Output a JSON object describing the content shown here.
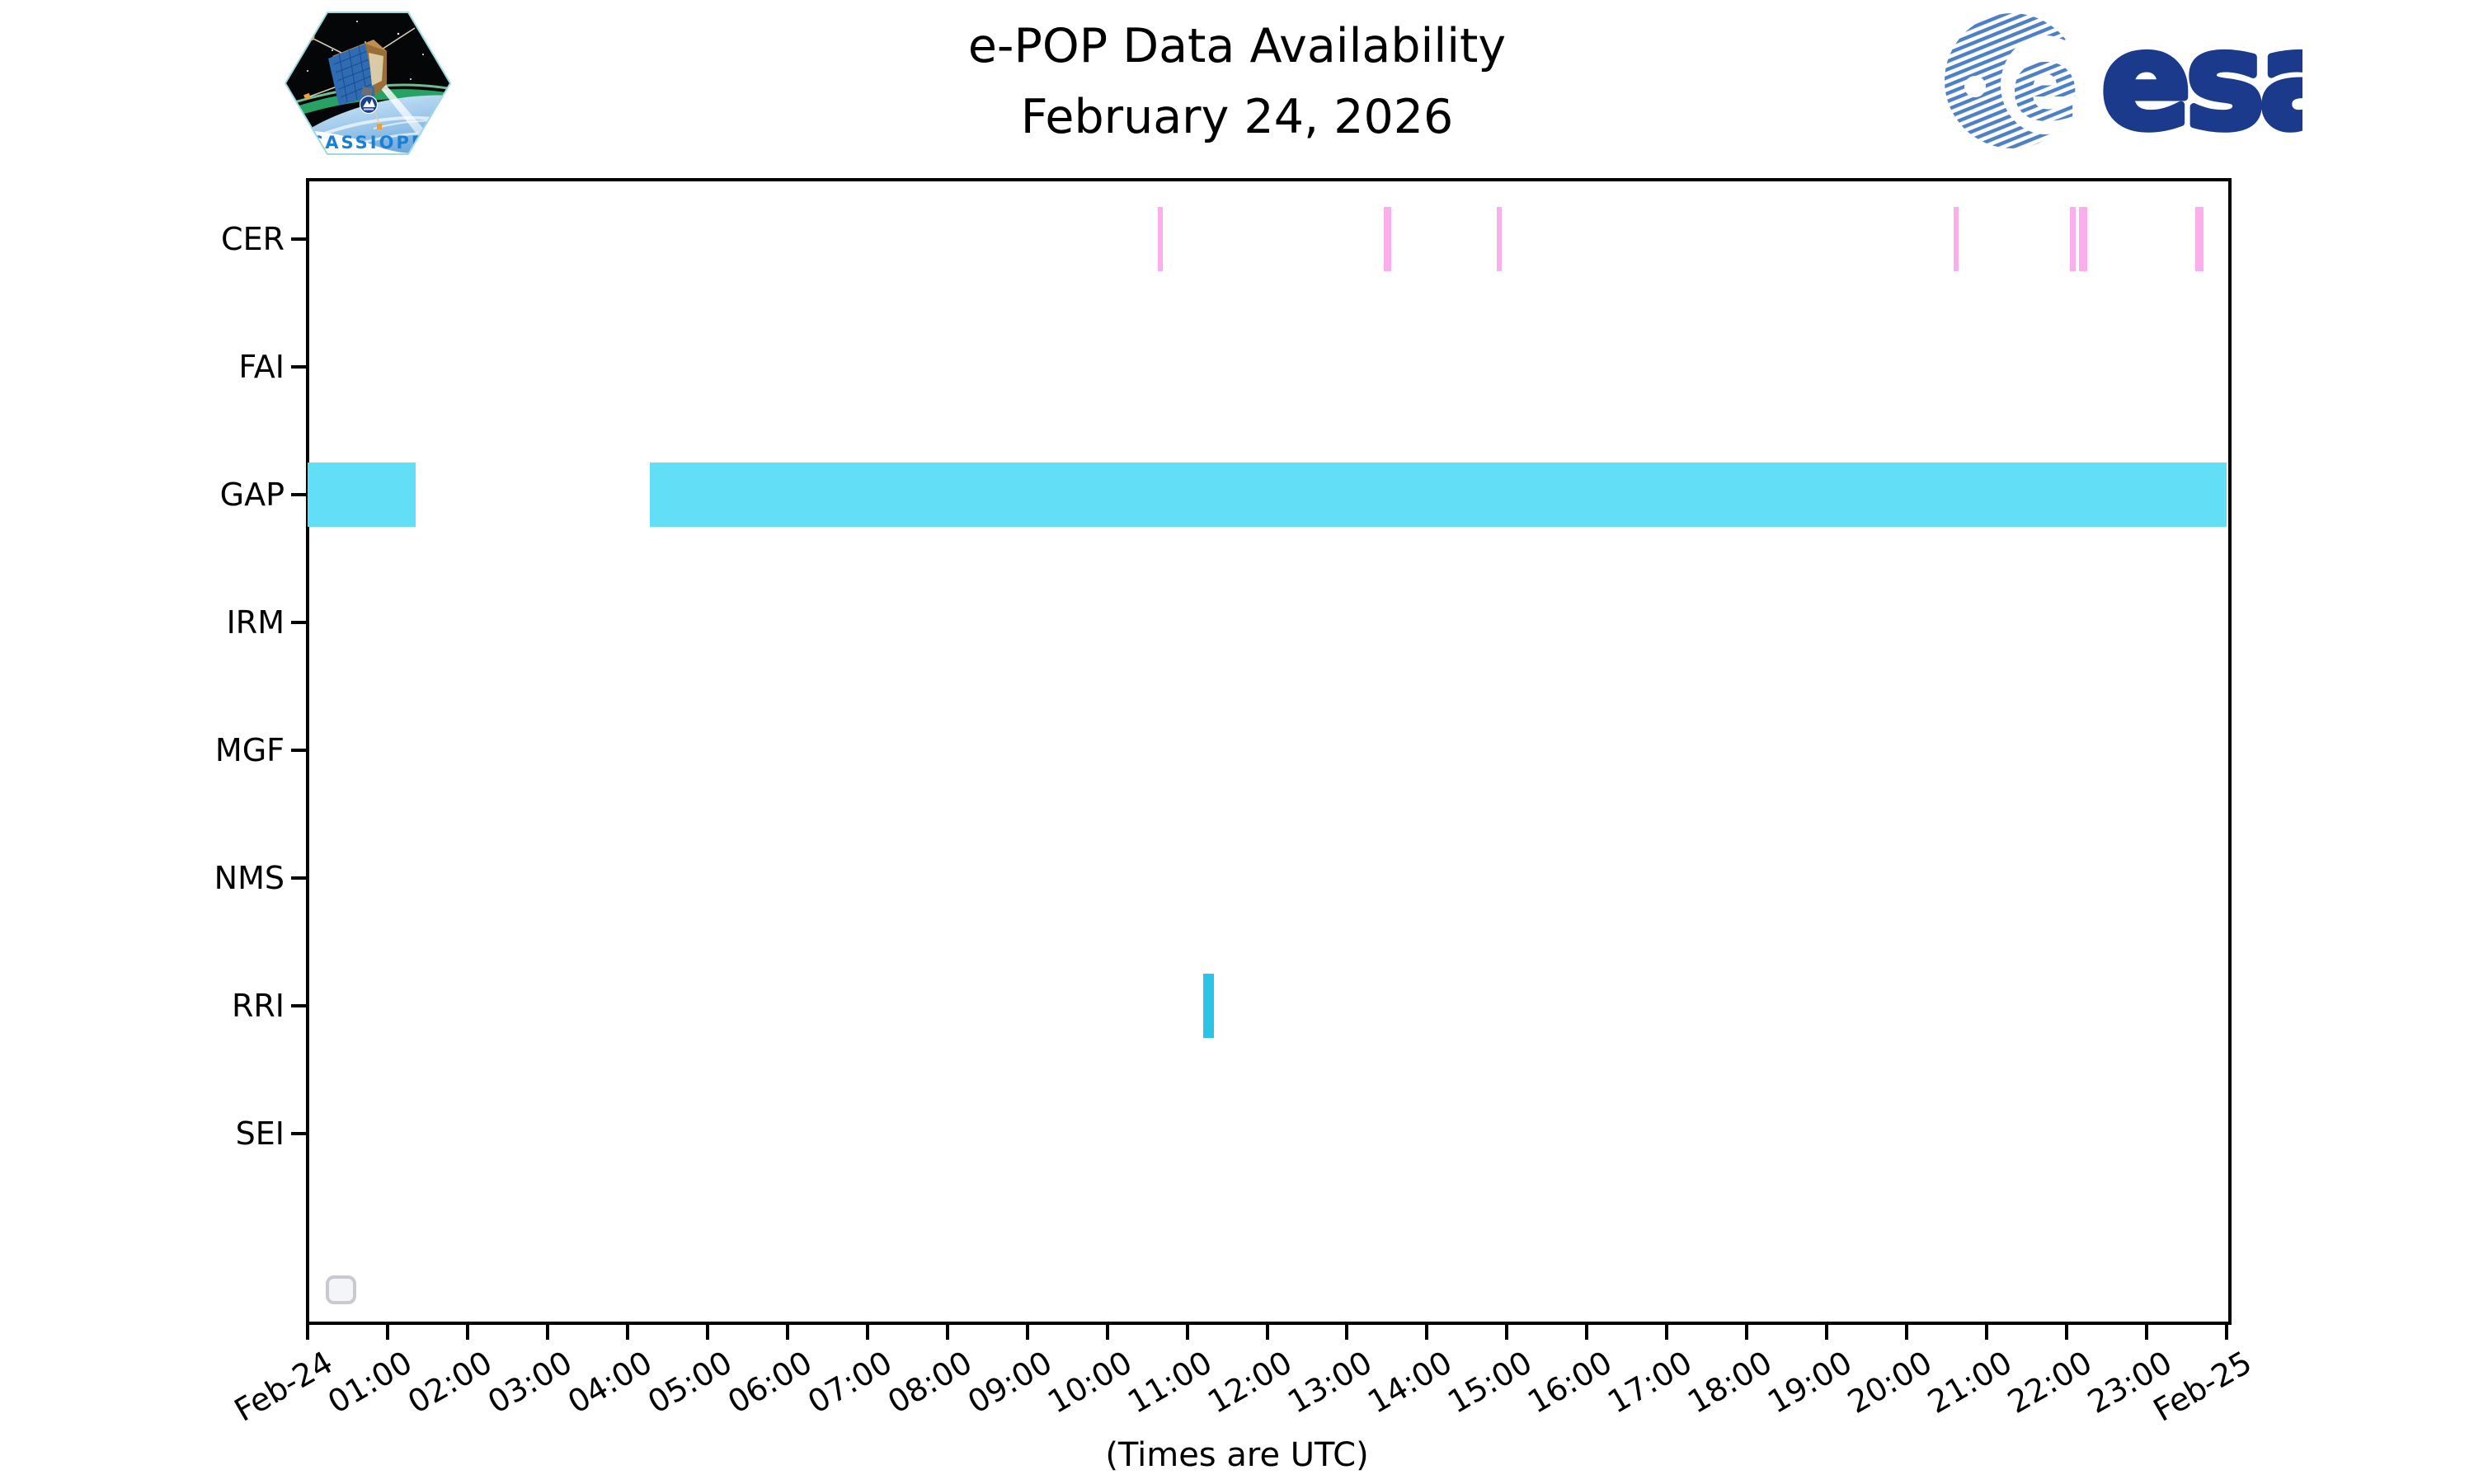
{
  "title": {
    "line1": "e-POP Data Availability",
    "line2": "February 24, 2026"
  },
  "footer": {
    "note": "(Times are UTC)"
  },
  "logos": {
    "esa_text": "esa",
    "patch_text": "CASSIOPE"
  },
  "chart_data": {
    "type": "gantt",
    "title": "e-POP Data Availability — February 24, 2026",
    "xlabel": "(Times are UTC)",
    "ylabel": "",
    "grid": false,
    "instruments": [
      "CER",
      "FAI",
      "GAP",
      "IRM",
      "MGF",
      "NMS",
      "RRI",
      "SEI"
    ],
    "x_axis": {
      "start": "Feb-24 00:00 UTC",
      "end": "Feb-25 00:00 UTC",
      "hours_span": 24,
      "tick_labels": [
        "Feb-24",
        "01:00",
        "02:00",
        "03:00",
        "04:00",
        "05:00",
        "06:00",
        "07:00",
        "08:00",
        "09:00",
        "10:00",
        "11:00",
        "12:00",
        "13:00",
        "14:00",
        "15:00",
        "16:00",
        "17:00",
        "18:00",
        "19:00",
        "20:00",
        "21:00",
        "22:00",
        "23:00",
        "Feb-25"
      ]
    },
    "colors": {
      "gap_band": "#62dff7",
      "rri_band": "#2bc4e6",
      "cer_band": "#fbaeec"
    },
    "intervals": [
      {
        "row": "CER",
        "start": "10:38",
        "end": "10:42",
        "start_h": 10.63,
        "end_h": 10.7,
        "color": "#fbaeec"
      },
      {
        "row": "CER",
        "start": "13:28",
        "end": "13:33",
        "start_h": 13.46,
        "end_h": 13.55,
        "color": "#fbaeec"
      },
      {
        "row": "CER",
        "start": "14:52",
        "end": "14:56",
        "start_h": 14.87,
        "end_h": 14.93,
        "color": "#fbaeec"
      },
      {
        "row": "CER",
        "start": "20:35",
        "end": "20:39",
        "start_h": 20.59,
        "end_h": 20.65,
        "color": "#fbaeec"
      },
      {
        "row": "CER",
        "start": "22:02",
        "end": "22:07",
        "start_h": 22.04,
        "end_h": 22.11,
        "color": "#fbaeec"
      },
      {
        "row": "CER",
        "start": "22:09",
        "end": "22:16",
        "start_h": 22.15,
        "end_h": 22.26,
        "color": "#fbaeec"
      },
      {
        "row": "CER",
        "start": "23:37",
        "end": "23:43",
        "start_h": 23.61,
        "end_h": 23.71,
        "color": "#fbaeec"
      },
      {
        "row": "GAP",
        "start": "00:00",
        "end": "01:21",
        "start_h": 0.0,
        "end_h": 1.35,
        "color": "#62dff7"
      },
      {
        "row": "GAP",
        "start": "04:17",
        "end": "24:00",
        "start_h": 4.28,
        "end_h": 24.0,
        "color": "#62dff7"
      },
      {
        "row": "RRI",
        "start": "11:12",
        "end": "11:20",
        "start_h": 11.2,
        "end_h": 11.33,
        "color": "#2bc4e6"
      }
    ],
    "rows_with_no_data": [
      "FAI",
      "IRM",
      "MGF",
      "NMS",
      "SEI"
    ]
  }
}
